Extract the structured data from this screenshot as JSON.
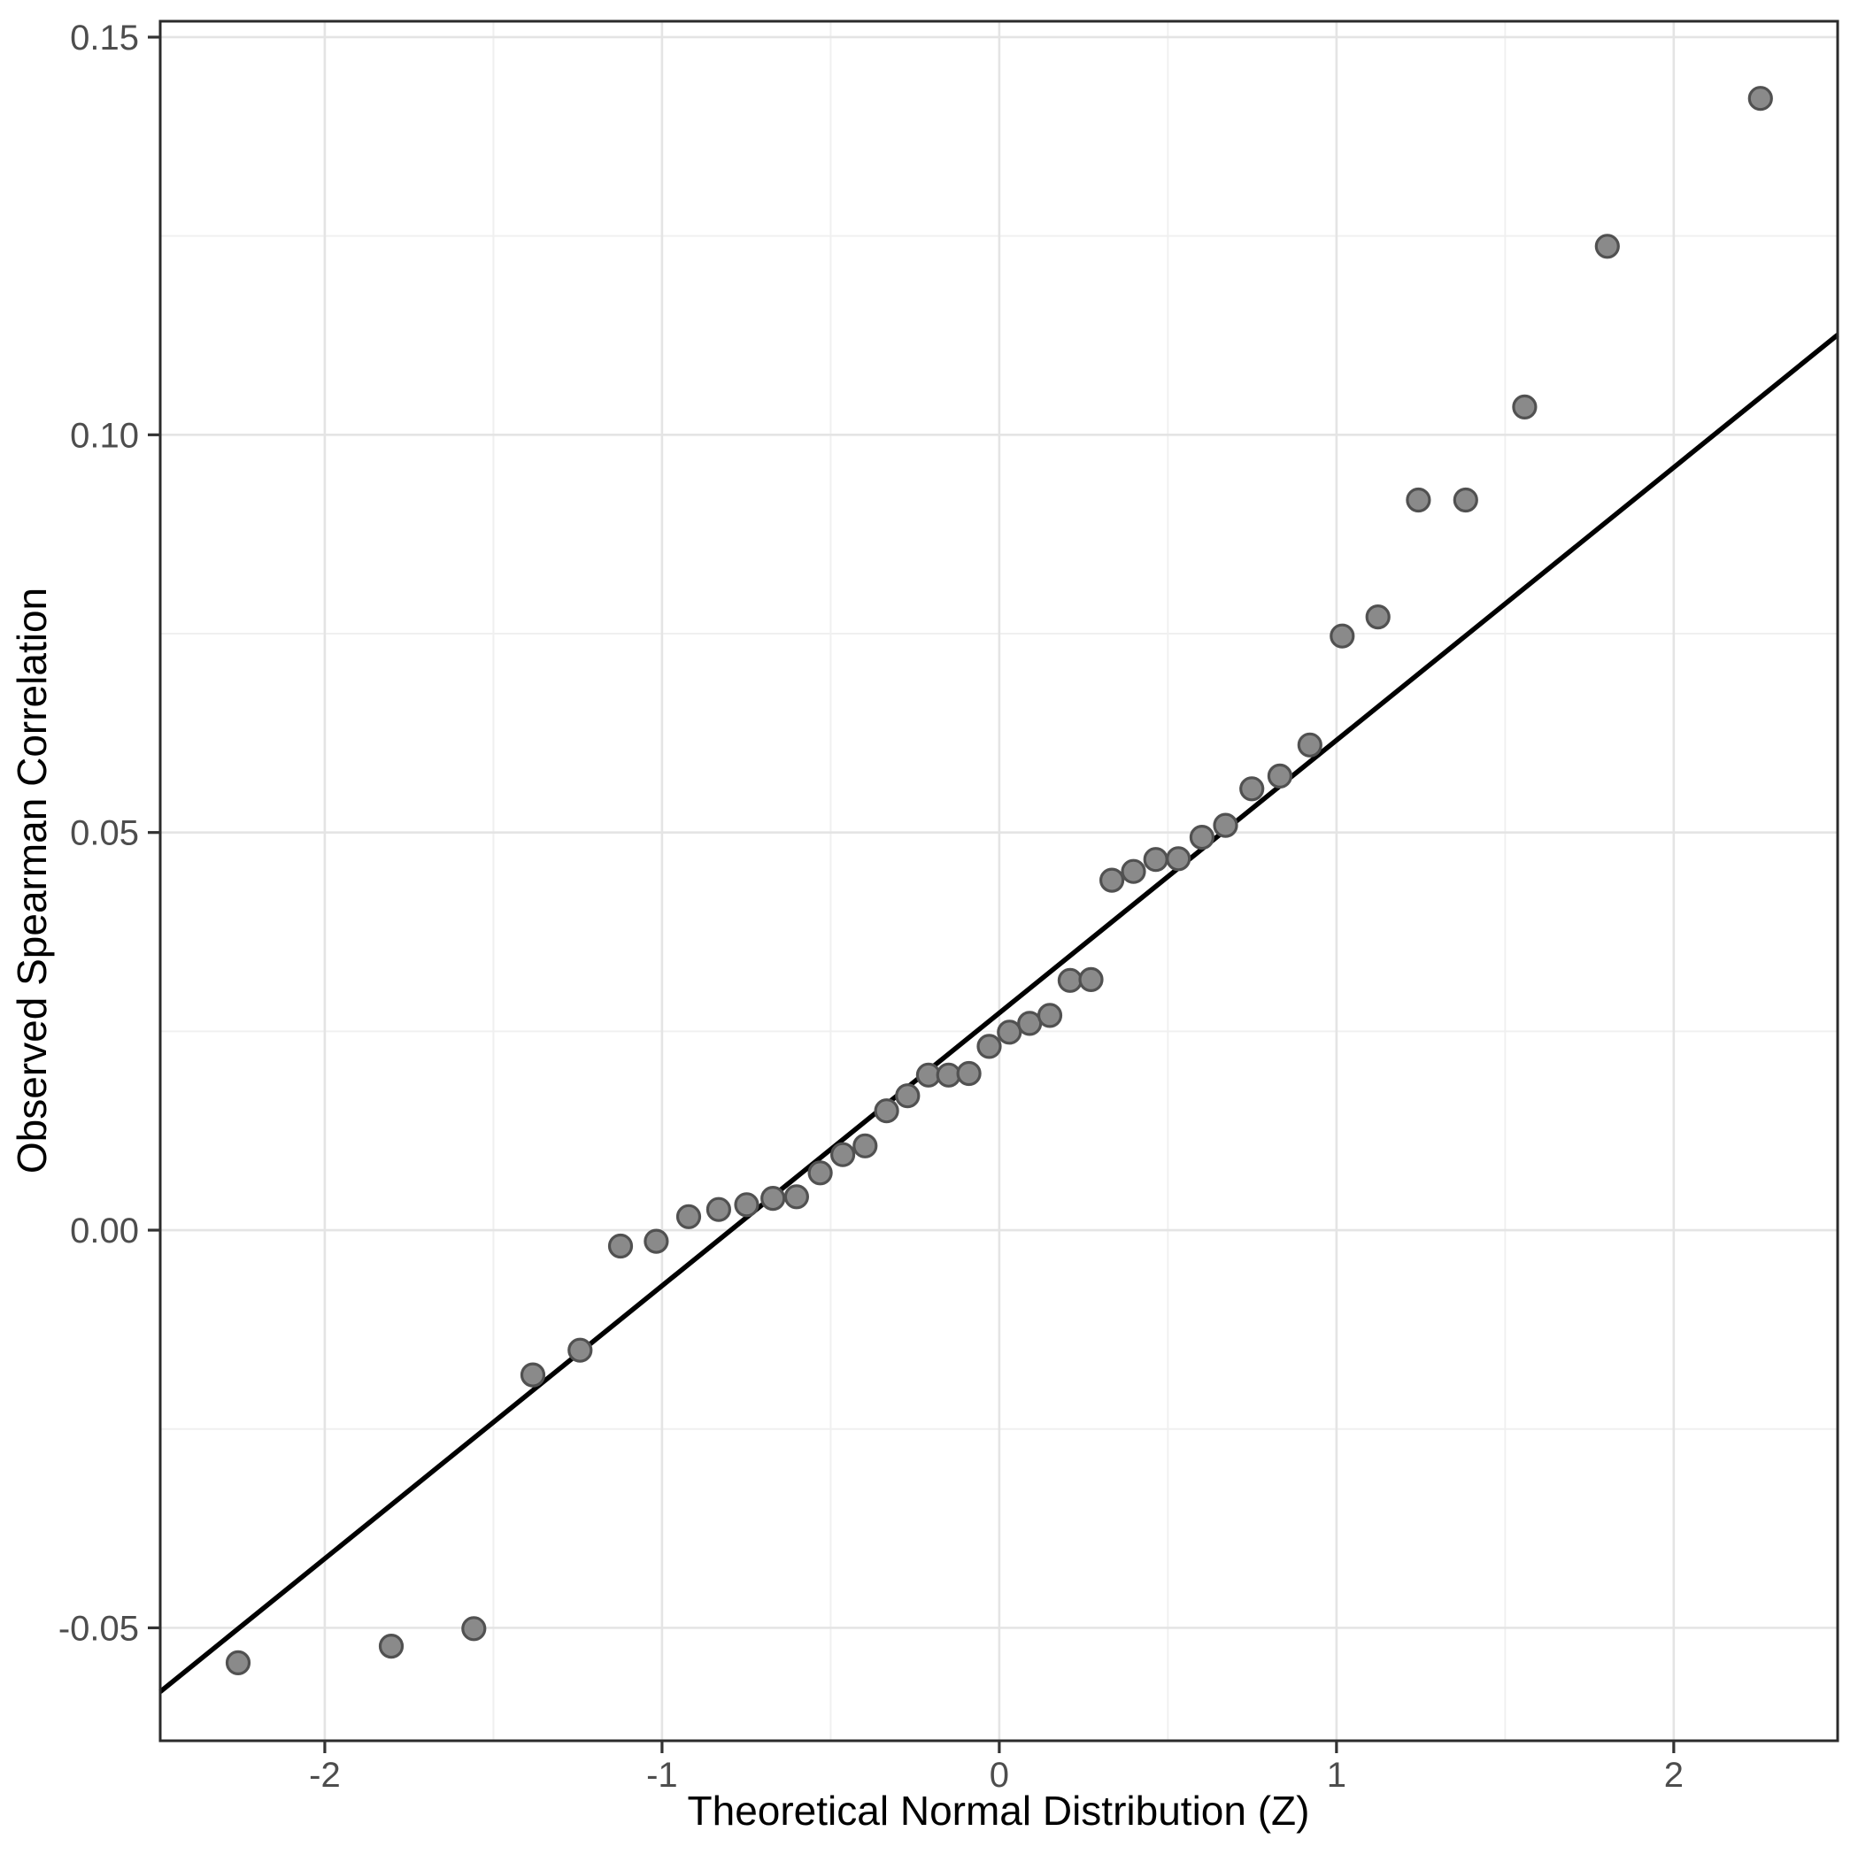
{
  "chart_data": {
    "type": "scatter",
    "title": "",
    "xlabel": "Theoretical Normal Distribution (Z)",
    "ylabel": "Observed Spearman Correlation",
    "x_ticks": [
      {
        "v": -2,
        "label": "-2"
      },
      {
        "v": -1,
        "label": "-1"
      },
      {
        "v": 0,
        "label": "0"
      },
      {
        "v": 1,
        "label": "1"
      },
      {
        "v": 2,
        "label": "2"
      }
    ],
    "y_ticks": [
      {
        "v": 0.15,
        "label": "0.15"
      },
      {
        "v": 0.1,
        "label": "0.10"
      },
      {
        "v": 0.05,
        "label": "0.05"
      },
      {
        "v": 0.0,
        "label": "0.00"
      },
      {
        "v": -0.05,
        "label": "-0.05"
      }
    ],
    "x_minor": [
      -1.5,
      -0.5,
      0.5,
      1.5
    ],
    "y_minor": [
      0.125,
      0.075,
      0.025,
      -0.025
    ],
    "xlim": [
      -2.488,
      2.486
    ],
    "ylim": [
      -0.0642,
      0.152
    ],
    "grid": "major+minor",
    "legend": "none",
    "points": {
      "theoretical_z": [
        -2.257,
        -1.803,
        -1.558,
        -1.383,
        -1.243,
        -1.123,
        -1.017,
        -0.921,
        -0.832,
        -0.749,
        -0.671,
        -0.601,
        -0.531,
        -0.464,
        -0.398,
        -0.334,
        -0.272,
        -0.21,
        -0.15,
        -0.09,
        -0.03,
        0.03,
        0.09,
        0.15,
        0.21,
        0.272,
        0.334,
        0.398,
        0.464,
        0.531,
        0.601,
        0.671,
        0.749,
        0.832,
        0.921,
        1.017,
        1.123,
        1.243,
        1.383,
        1.558,
        1.803,
        2.257
      ],
      "observed": [
        -0.0544,
        -0.0523,
        -0.0501,
        -0.0182,
        -0.0151,
        -0.002,
        -0.0014,
        0.0017,
        0.0026,
        0.0032,
        0.004,
        0.0042,
        0.0072,
        0.0095,
        0.0106,
        0.015,
        0.0169,
        0.0195,
        0.0195,
        0.0197,
        0.0231,
        0.0249,
        0.026,
        0.027,
        0.0314,
        0.0315,
        0.044,
        0.0451,
        0.0466,
        0.0467,
        0.0494,
        0.0509,
        0.0555,
        0.0571,
        0.061,
        0.0747,
        0.0771,
        0.0918,
        0.0918,
        0.1035,
        0.1237,
        0.1423
      ]
    },
    "reference_line": {
      "intercept": 0.0273,
      "slope": 0.0343
    },
    "colors": {
      "background": "#ffffff",
      "panel_background": "#ffffff",
      "panel_border": "#2b2b2b",
      "grid_major": "#e4e4e4",
      "grid_minor": "#f0f0f0",
      "point_fill": "#8a8a8a",
      "point_stroke": "#515151",
      "line": "#000000",
      "tick_mark": "#333333",
      "tick_label": "#4d4d4d",
      "axis_title": "#000000"
    }
  }
}
